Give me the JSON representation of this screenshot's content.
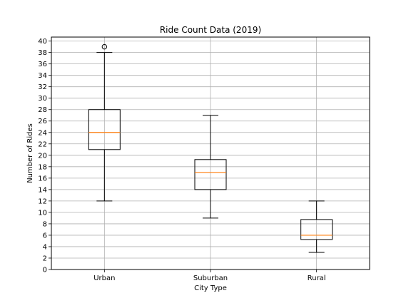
{
  "chart_data": {
    "type": "boxplot",
    "title": "Ride Count Data (2019)",
    "xlabel": "City Type",
    "ylabel": "Number of Rides",
    "ylim": [
      0,
      40.7
    ],
    "yticks": [
      0,
      2,
      4,
      6,
      8,
      10,
      12,
      14,
      16,
      18,
      20,
      22,
      24,
      26,
      28,
      30,
      32,
      34,
      36,
      38,
      40
    ],
    "grid": true,
    "categories": [
      "Urban",
      "Suburban",
      "Rural"
    ],
    "boxes": [
      {
        "label": "Urban",
        "whisker_low": 12,
        "q1": 21,
        "median": 24,
        "q3": 28,
        "whisker_high": 38,
        "outliers": [
          39
        ]
      },
      {
        "label": "Suburban",
        "whisker_low": 9,
        "q1": 14,
        "median": 17,
        "q3": 19.25,
        "whisker_high": 27,
        "outliers": []
      },
      {
        "label": "Rural",
        "whisker_low": 3,
        "q1": 5.25,
        "median": 6,
        "q3": 8.75,
        "whisker_high": 12,
        "outliers": []
      }
    ],
    "colors": {
      "box": "#000000",
      "median": "#ff7f0e",
      "grid": "#b0b0b0"
    }
  }
}
